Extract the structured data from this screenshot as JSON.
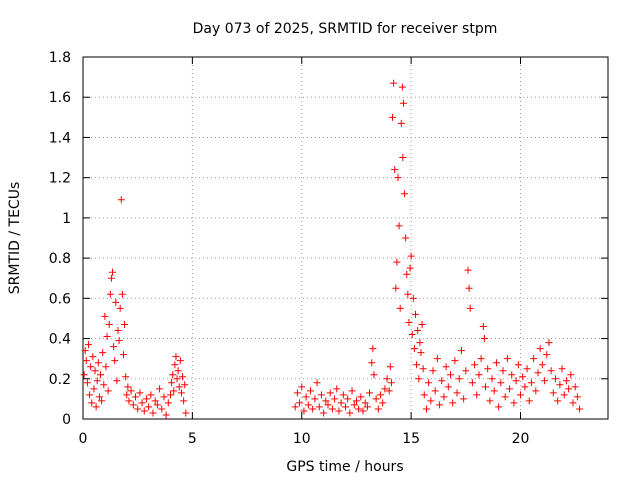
{
  "chart_data": {
    "type": "scatter",
    "title": "Day 073 of 2025, SRMTID for receiver stpm",
    "xlabel": "GPS time / hours",
    "ylabel": "SRMTID / TECUs",
    "xlim": [
      0,
      24
    ],
    "ylim": [
      0,
      1.8
    ],
    "xticks": [
      0,
      5,
      10,
      15,
      20
    ],
    "yticks": [
      0,
      0.2,
      0.4,
      0.6,
      0.8,
      1,
      1.2,
      1.4,
      1.6,
      1.8
    ],
    "xtick_labels": [
      "0",
      "5",
      "10",
      "15",
      "20"
    ],
    "ytick_labels": [
      "0",
      "0.2",
      "0.4",
      "0.6",
      "0.8",
      "1",
      "1.2",
      "1.4",
      "1.6",
      "1.8"
    ],
    "grid": true,
    "marker": "+",
    "color": "#ff0000",
    "points": [
      [
        0.05,
        0.22
      ],
      [
        0.1,
        0.34
      ],
      [
        0.15,
        0.29
      ],
      [
        0.2,
        0.18
      ],
      [
        0.25,
        0.37
      ],
      [
        0.3,
        0.12
      ],
      [
        0.35,
        0.26
      ],
      [
        0.4,
        0.08
      ],
      [
        0.45,
        0.31
      ],
      [
        0.5,
        0.15
      ],
      [
        0.55,
        0.24
      ],
      [
        0.6,
        0.06
      ],
      [
        0.65,
        0.19
      ],
      [
        0.7,
        0.28
      ],
      [
        0.75,
        0.11
      ],
      [
        0.8,
        0.22
      ],
      [
        0.85,
        0.09
      ],
      [
        0.9,
        0.33
      ],
      [
        0.95,
        0.17
      ],
      [
        1.0,
        0.51
      ],
      [
        1.05,
        0.26
      ],
      [
        1.1,
        0.41
      ],
      [
        1.15,
        0.14
      ],
      [
        1.2,
        0.47
      ],
      [
        1.25,
        0.62
      ],
      [
        1.3,
        0.7
      ],
      [
        1.35,
        0.73
      ],
      [
        1.4,
        0.36
      ],
      [
        1.45,
        0.29
      ],
      [
        1.5,
        0.58
      ],
      [
        1.55,
        0.19
      ],
      [
        1.6,
        0.44
      ],
      [
        1.65,
        0.39
      ],
      [
        1.7,
        0.55
      ],
      [
        1.75,
        1.09
      ],
      [
        1.8,
        0.62
      ],
      [
        1.85,
        0.32
      ],
      [
        1.9,
        0.47
      ],
      [
        1.95,
        0.21
      ],
      [
        2.0,
        0.12
      ],
      [
        2.05,
        0.16
      ],
      [
        2.1,
        0.09
      ],
      [
        2.2,
        0.14
      ],
      [
        2.3,
        0.07
      ],
      [
        2.4,
        0.11
      ],
      [
        2.5,
        0.05
      ],
      [
        2.6,
        0.13
      ],
      [
        2.7,
        0.08
      ],
      [
        2.8,
        0.04
      ],
      [
        2.9,
        0.1
      ],
      [
        3.0,
        0.06
      ],
      [
        3.1,
        0.12
      ],
      [
        3.2,
        0.03
      ],
      [
        3.3,
        0.09
      ],
      [
        3.4,
        0.07
      ],
      [
        3.5,
        0.15
      ],
      [
        3.6,
        0.05
      ],
      [
        3.7,
        0.11
      ],
      [
        3.8,
        0.02
      ],
      [
        3.9,
        0.08
      ],
      [
        4.0,
        0.12
      ],
      [
        4.05,
        0.18
      ],
      [
        4.1,
        0.22
      ],
      [
        4.15,
        0.14
      ],
      [
        4.2,
        0.27
      ],
      [
        4.25,
        0.31
      ],
      [
        4.3,
        0.2
      ],
      [
        4.35,
        0.24
      ],
      [
        4.4,
        0.16
      ],
      [
        4.45,
        0.29
      ],
      [
        4.5,
        0.13
      ],
      [
        4.55,
        0.21
      ],
      [
        4.6,
        0.09
      ],
      [
        4.65,
        0.17
      ],
      [
        4.7,
        0.03
      ],
      [
        9.7,
        0.06
      ],
      [
        9.8,
        0.13
      ],
      [
        9.9,
        0.08
      ],
      [
        10.0,
        0.16
      ],
      [
        10.1,
        0.04
      ],
      [
        10.2,
        0.11
      ],
      [
        10.3,
        0.07
      ],
      [
        10.4,
        0.14
      ],
      [
        10.5,
        0.05
      ],
      [
        10.6,
        0.1
      ],
      [
        10.7,
        0.18
      ],
      [
        10.8,
        0.06
      ],
      [
        10.9,
        0.12
      ],
      [
        11.0,
        0.03
      ],
      [
        11.1,
        0.09
      ],
      [
        11.2,
        0.07
      ],
      [
        11.3,
        0.13
      ],
      [
        11.4,
        0.05
      ],
      [
        11.5,
        0.1
      ],
      [
        11.6,
        0.15
      ],
      [
        11.7,
        0.04
      ],
      [
        11.8,
        0.08
      ],
      [
        11.9,
        0.12
      ],
      [
        12.0,
        0.06
      ],
      [
        12.1,
        0.1
      ],
      [
        12.2,
        0.03
      ],
      [
        12.3,
        0.14
      ],
      [
        12.4,
        0.07
      ],
      [
        12.5,
        0.09
      ],
      [
        12.6,
        0.05
      ],
      [
        12.7,
        0.11
      ],
      [
        12.8,
        0.04
      ],
      [
        12.9,
        0.08
      ],
      [
        13.0,
        0.06
      ],
      [
        13.1,
        0.13
      ],
      [
        13.2,
        0.28
      ],
      [
        13.25,
        0.35
      ],
      [
        13.3,
        0.22
      ],
      [
        13.4,
        0.1
      ],
      [
        13.5,
        0.05
      ],
      [
        13.6,
        0.12
      ],
      [
        13.7,
        0.08
      ],
      [
        13.8,
        0.15
      ],
      [
        13.9,
        0.2
      ],
      [
        14.0,
        0.14
      ],
      [
        14.05,
        0.26
      ],
      [
        14.1,
        0.18
      ],
      [
        14.15,
        1.5
      ],
      [
        14.2,
        1.67
      ],
      [
        14.25,
        1.24
      ],
      [
        14.3,
        0.65
      ],
      [
        14.35,
        0.78
      ],
      [
        14.4,
        1.2
      ],
      [
        14.45,
        0.96
      ],
      [
        14.5,
        0.55
      ],
      [
        14.55,
        1.47
      ],
      [
        14.6,
        1.65
      ],
      [
        14.62,
        1.3
      ],
      [
        14.65,
        1.57
      ],
      [
        14.7,
        1.12
      ],
      [
        14.75,
        0.9
      ],
      [
        14.8,
        0.72
      ],
      [
        14.85,
        0.62
      ],
      [
        14.9,
        0.48
      ],
      [
        14.95,
        0.75
      ],
      [
        15.0,
        0.81
      ],
      [
        15.05,
        0.42
      ],
      [
        15.1,
        0.6
      ],
      [
        15.15,
        0.35
      ],
      [
        15.2,
        0.52
      ],
      [
        15.25,
        0.27
      ],
      [
        15.3,
        0.44
      ],
      [
        15.35,
        0.2
      ],
      [
        15.4,
        0.38
      ],
      [
        15.45,
        0.33
      ],
      [
        15.5,
        0.47
      ],
      [
        15.55,
        0.25
      ],
      [
        15.6,
        0.12
      ],
      [
        15.7,
        0.05
      ],
      [
        15.8,
        0.18
      ],
      [
        15.9,
        0.09
      ],
      [
        16.0,
        0.24
      ],
      [
        16.1,
        0.14
      ],
      [
        16.2,
        0.3
      ],
      [
        16.3,
        0.07
      ],
      [
        16.4,
        0.19
      ],
      [
        16.5,
        0.11
      ],
      [
        16.6,
        0.26
      ],
      [
        16.7,
        0.16
      ],
      [
        16.8,
        0.22
      ],
      [
        16.9,
        0.08
      ],
      [
        17.0,
        0.29
      ],
      [
        17.1,
        0.13
      ],
      [
        17.2,
        0.2
      ],
      [
        17.3,
        0.34
      ],
      [
        17.4,
        0.1
      ],
      [
        17.5,
        0.24
      ],
      [
        17.6,
        0.74
      ],
      [
        17.65,
        0.65
      ],
      [
        17.7,
        0.55
      ],
      [
        17.8,
        0.18
      ],
      [
        17.9,
        0.27
      ],
      [
        18.0,
        0.12
      ],
      [
        18.1,
        0.22
      ],
      [
        18.2,
        0.3
      ],
      [
        18.3,
        0.46
      ],
      [
        18.35,
        0.4
      ],
      [
        18.4,
        0.16
      ],
      [
        18.5,
        0.25
      ],
      [
        18.6,
        0.09
      ],
      [
        18.7,
        0.2
      ],
      [
        18.8,
        0.14
      ],
      [
        18.9,
        0.28
      ],
      [
        19.0,
        0.06
      ],
      [
        19.1,
        0.18
      ],
      [
        19.2,
        0.24
      ],
      [
        19.3,
        0.11
      ],
      [
        19.4,
        0.3
      ],
      [
        19.5,
        0.15
      ],
      [
        19.6,
        0.22
      ],
      [
        19.7,
        0.08
      ],
      [
        19.8,
        0.19
      ],
      [
        19.9,
        0.27
      ],
      [
        20.0,
        0.12
      ],
      [
        20.1,
        0.21
      ],
      [
        20.2,
        0.16
      ],
      [
        20.3,
        0.25
      ],
      [
        20.4,
        0.09
      ],
      [
        20.5,
        0.18
      ],
      [
        20.6,
        0.3
      ],
      [
        20.7,
        0.14
      ],
      [
        20.8,
        0.23
      ],
      [
        20.9,
        0.35
      ],
      [
        21.0,
        0.27
      ],
      [
        21.1,
        0.19
      ],
      [
        21.2,
        0.32
      ],
      [
        21.3,
        0.38
      ],
      [
        21.4,
        0.24
      ],
      [
        21.5,
        0.13
      ],
      [
        21.6,
        0.2
      ],
      [
        21.7,
        0.09
      ],
      [
        21.8,
        0.17
      ],
      [
        21.9,
        0.25
      ],
      [
        22.0,
        0.12
      ],
      [
        22.1,
        0.19
      ],
      [
        22.2,
        0.15
      ],
      [
        22.3,
        0.22
      ],
      [
        22.4,
        0.08
      ],
      [
        22.5,
        0.16
      ],
      [
        22.6,
        0.11
      ],
      [
        22.7,
        0.05
      ]
    ]
  }
}
